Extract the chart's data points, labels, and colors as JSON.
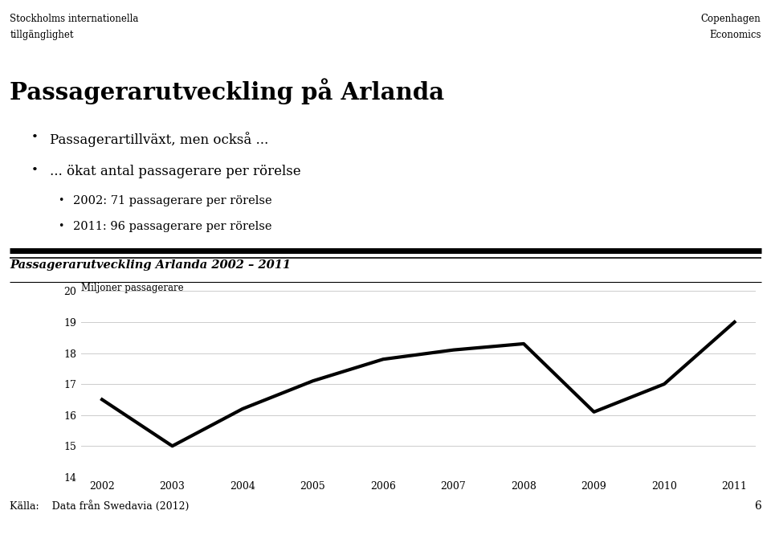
{
  "title_main": "Passagerarutveckling på Arlanda",
  "bullet1": "Passagerartillväxt, men också ...",
  "bullet2": "... ökat antal passagerare per rörelse",
  "sub_bullet1": "2002: 71 passagerare per rörelse",
  "sub_bullet2": "2011: 96 passagerare per rörelse",
  "chart_title": "Passagerarutveckling Arlanda 2002 – 2011",
  "ylabel": "Miljoner passagerare",
  "source": "Källa:    Data från Swedavia (2012)",
  "header_left1": "Stockholms internationella",
  "header_left2": "tillgänglighet",
  "header_right1": "Copenhagen",
  "header_right2": "Economics",
  "years": [
    2002,
    2003,
    2004,
    2005,
    2006,
    2007,
    2008,
    2009,
    2010,
    2011
  ],
  "values": [
    16.5,
    15.0,
    16.2,
    17.1,
    17.8,
    18.1,
    18.3,
    16.1,
    17.0,
    19.0
  ],
  "ylim": [
    14,
    20
  ],
  "yticks": [
    14,
    15,
    16,
    17,
    18,
    19,
    20
  ],
  "line_color": "#000000",
  "line_width": 3.0,
  "bg_color": "#ffffff",
  "grid_color": "#cccccc",
  "tick_fontsize": 9,
  "page_number": "6"
}
